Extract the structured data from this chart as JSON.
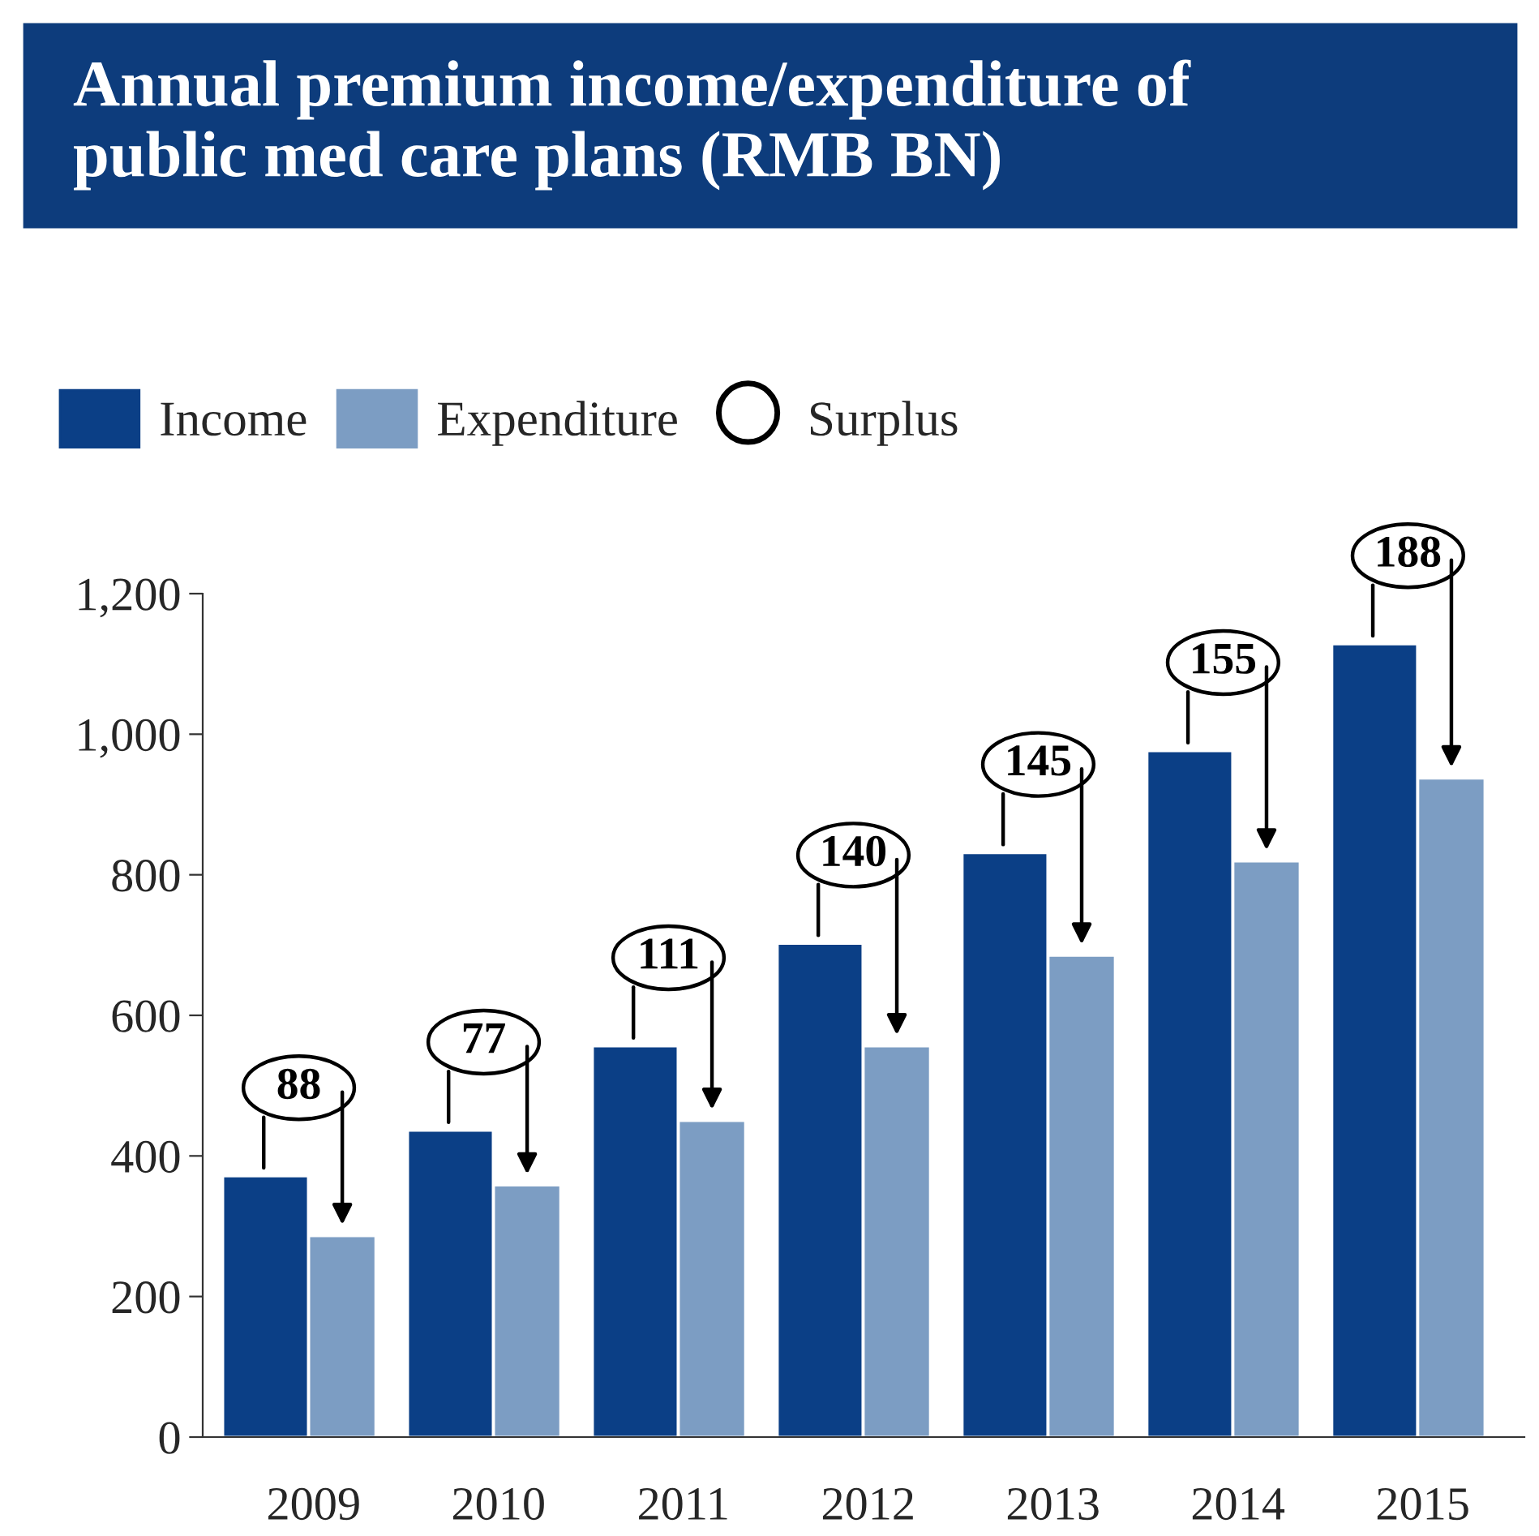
{
  "chart_data": {
    "type": "bar",
    "title": "Annual premium income/expenditure of\npublic med care plans (RMB BN)",
    "categories": [
      "2009",
      "2010",
      "2011",
      "2012",
      "2013",
      "2014",
      "2015"
    ],
    "series": [
      {
        "name": "Income",
        "color": "#0b3f86",
        "values": [
          371,
          436,
          556,
          702,
          831,
          976,
          1128
        ]
      },
      {
        "name": "Expenditure",
        "color": "#7c9dc3",
        "values": [
          286,
          358,
          450,
          556,
          685,
          819,
          937
        ]
      }
    ],
    "annotations": [
      "Surplus",
      {
        "text": "88",
        "x": "2009",
        "y": 371
      },
      {
        "text": "77",
        "x": "2010",
        "y": 436
      },
      {
        "text": "111",
        "x": "2011",
        "y": 556
      },
      {
        "text": "140",
        "x": "2012",
        "y": 702
      },
      {
        "text": "145",
        "x": "2013",
        "y": 831
      },
      {
        "text": "155",
        "x": "2014",
        "y": 976
      },
      {
        "text": "188",
        "x": "2015",
        "y": 1128
      }
    ],
    "ylim": [
      0,
      1200
    ],
    "yticks": [
      0,
      {
        "value": 200,
        "label": "200"
      },
      {
        "value": 400,
        "label": "400"
      },
      {
        "value": 600,
        "label": "600"
      },
      {
        "value": 800,
        "label": "800"
      },
      {
        "value": 1000,
        "label": "1,000"
      },
      {
        "value": 1200,
        "label": "1,200"
      }
    ],
    "grid": false,
    "legend": "top left"
  }
}
